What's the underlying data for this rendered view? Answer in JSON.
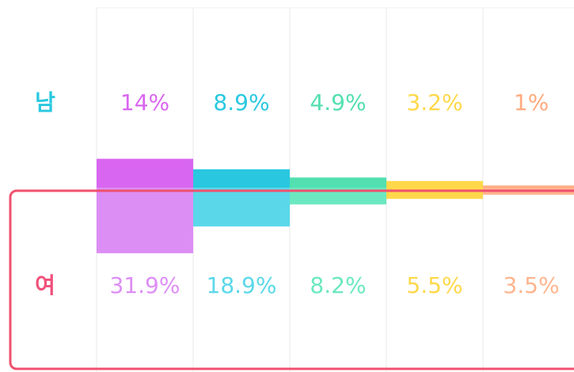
{
  "chart_data": {
    "type": "bar",
    "categories": [
      null,
      null,
      null,
      null,
      null
    ],
    "series": [
      {
        "name": "남",
        "color": "#29c8e0",
        "colors": [
          "#d966f0",
          "#29c8e0",
          "#52e0b0",
          "#ffd84a",
          "#ffab80"
        ],
        "values": [
          14,
          8.9,
          4.9,
          3.2,
          1
        ],
        "value_labels": [
          "14%",
          "8.9%",
          "4.9%",
          "3.2%",
          "1%"
        ]
      },
      {
        "name": "여",
        "color": "#f0507a",
        "colors": [
          "#dd8ef5",
          "#5ad8ea",
          "#6be8c0",
          "#ffd84a",
          "#ffb58e"
        ],
        "values": [
          31.9,
          18.9,
          8.2,
          5.5,
          3.5
        ],
        "value_labels": [
          "31.9%",
          "18.9%",
          "8.2%",
          "5.5%",
          "3.5%"
        ]
      }
    ]
  }
}
